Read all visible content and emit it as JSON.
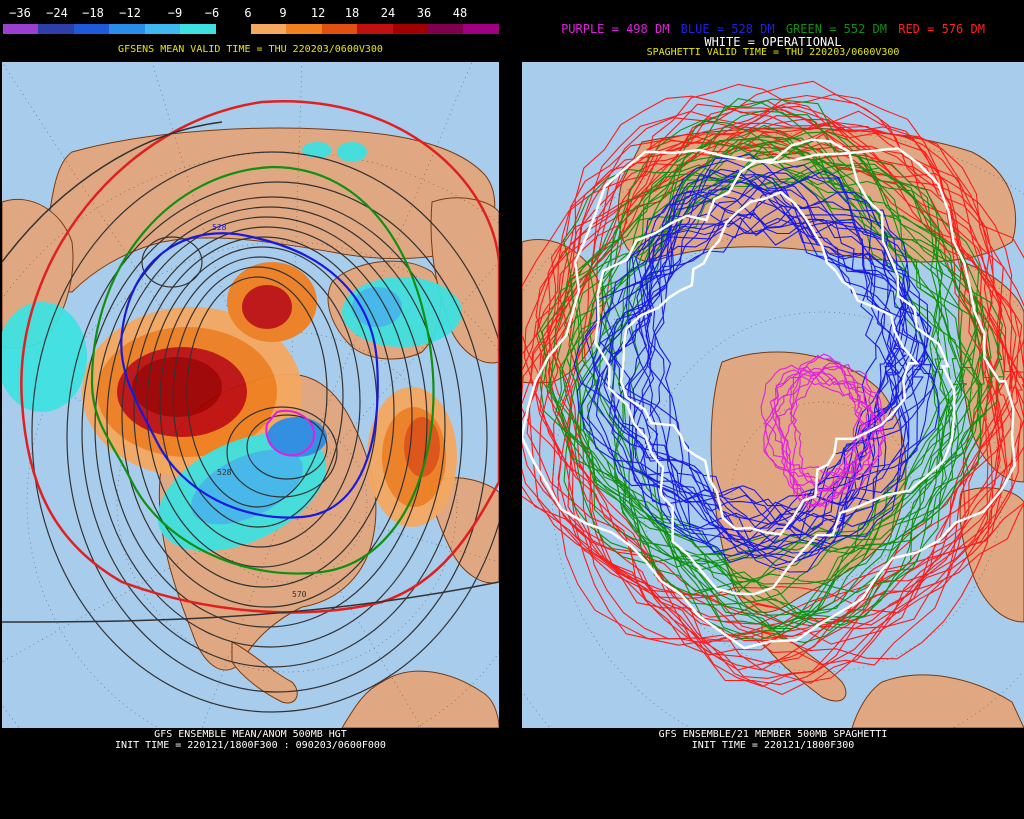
{
  "left": {
    "colorbar": {
      "labels": [
        "−36",
        "−24",
        "−18",
        "−12",
        "−9",
        "−6",
        "6",
        "9",
        "12",
        "18",
        "24",
        "36",
        "48"
      ],
      "colors": [
        "#9a3fd0",
        "#2f3fa8",
        "#1f5bd8",
        "#2a8ee8",
        "#40b8f0",
        "#3fe0e0",
        "#000000",
        "#f4a860",
        "#f08020",
        "#e05010",
        "#c01010",
        "#a00000",
        "#800050",
        "#a00080"
      ]
    },
    "title": "GFSENS MEAN VALID TIME = THU 220203/0600V300",
    "contour_labels": [
      "528",
      "528",
      "570"
    ],
    "footer_line1": "GFS ENSEMBLE MEAN/ANOM 500MB HGT",
    "footer_line2": "INIT TIME = 220121/1800F300 : 090203/0600F000"
  },
  "right": {
    "legend": [
      {
        "text": "PURPLE = 498 DM",
        "color": "#e020e0"
      },
      {
        "text": "BLUE = 528 DM",
        "color": "#2020e0"
      },
      {
        "text": "GREEN = 552 DM",
        "color": "#109010"
      },
      {
        "text": "RED = 576 DM",
        "color": "#ff2020"
      }
    ],
    "legend_white": "WHITE = OPERATIONAL",
    "title": "SPAGHETTI VALID TIME = THU 220203/0600V300",
    "footer_line1": "GFS ENSEMBLE/21 MEMBER 500MB SPAGHETTI",
    "footer_line2": "INIT TIME = 220121/1800F300"
  },
  "colors": {
    "ocean": "#a8ccec",
    "land": "#e0a882",
    "coast": "#7a3a10"
  }
}
